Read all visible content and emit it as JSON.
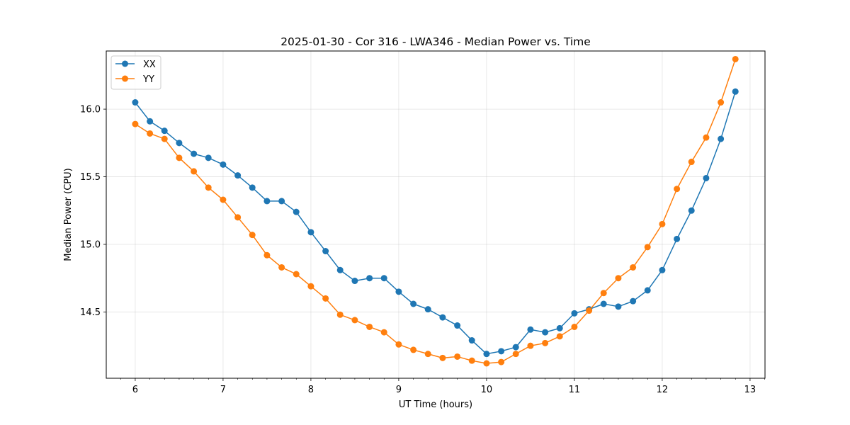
{
  "chart_data": {
    "type": "line",
    "title": "2025-01-30 - Cor 316 - LWA346 - Median Power vs. Time",
    "xlabel": "UT Time (hours)",
    "ylabel": "Median Power (CPU)",
    "xlim": [
      5.67,
      13.17
    ],
    "ylim": [
      14.01,
      16.43
    ],
    "xticks": [
      6,
      7,
      8,
      9,
      10,
      11,
      12,
      13
    ],
    "xtick_labels": [
      "6",
      "7",
      "8",
      "9",
      "10",
      "11",
      "12",
      "13"
    ],
    "yticks": [
      14.5,
      15.0,
      15.5,
      16.0
    ],
    "ytick_labels": [
      "14.5",
      "15.0",
      "15.5",
      "16.0"
    ],
    "grid": true,
    "legend": "top-left",
    "x": [
      6.0,
      6.167,
      6.333,
      6.5,
      6.667,
      6.833,
      7.0,
      7.167,
      7.333,
      7.5,
      7.667,
      7.833,
      8.0,
      8.167,
      8.333,
      8.5,
      8.667,
      8.833,
      9.0,
      9.167,
      9.333,
      9.5,
      9.667,
      9.833,
      10.0,
      10.167,
      10.333,
      10.5,
      10.667,
      10.833,
      11.0,
      11.167,
      11.333,
      11.5,
      11.667,
      11.833,
      12.0,
      12.167,
      12.333,
      12.5,
      12.667,
      12.833
    ],
    "series": [
      {
        "name": "XX",
        "color": "#1f77b4",
        "values": [
          16.05,
          15.91,
          15.84,
          15.75,
          15.67,
          15.64,
          15.59,
          15.51,
          15.42,
          15.32,
          15.32,
          15.24,
          15.09,
          14.95,
          14.81,
          14.73,
          14.75,
          14.75,
          14.65,
          14.56,
          14.52,
          14.46,
          14.4,
          14.29,
          14.19,
          14.21,
          14.24,
          14.37,
          14.35,
          14.38,
          14.49,
          14.52,
          14.56,
          14.54,
          14.58,
          14.66,
          14.81,
          15.04,
          15.25,
          15.49,
          15.78,
          16.13
        ]
      },
      {
        "name": "YY",
        "color": "#ff7f0e",
        "values": [
          15.89,
          15.82,
          15.78,
          15.64,
          15.54,
          15.42,
          15.33,
          15.2,
          15.07,
          14.92,
          14.83,
          14.78,
          14.69,
          14.6,
          14.48,
          14.44,
          14.39,
          14.35,
          14.26,
          14.22,
          14.19,
          14.16,
          14.17,
          14.14,
          14.12,
          14.13,
          14.19,
          14.25,
          14.27,
          14.32,
          14.39,
          14.51,
          14.64,
          14.75,
          14.83,
          14.98,
          15.15,
          15.41,
          15.61,
          15.79,
          16.05,
          16.37
        ]
      }
    ]
  }
}
